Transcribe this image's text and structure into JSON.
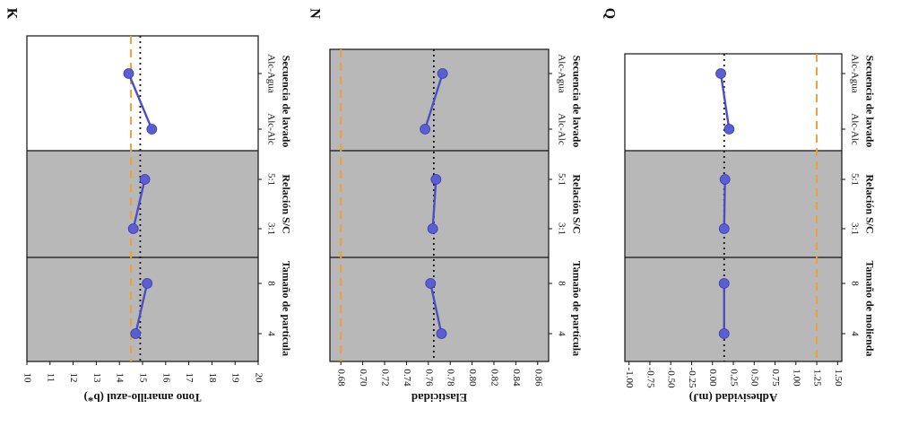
{
  "figure_title": "",
  "chart_data": [
    {
      "type": "line",
      "panel_label": "K",
      "ylabel": "Tono amarillo-azul (b*)",
      "ylim": [
        10,
        20
      ],
      "yticks": [
        20,
        19,
        18,
        17,
        16,
        15,
        14,
        13,
        12,
        11,
        10
      ],
      "reference_lines": [
        {
          "name": "mean",
          "value": 14.9,
          "style": "dotted",
          "color": "#111111"
        },
        {
          "name": "reference",
          "value": 14.5,
          "style": "dashed",
          "color": "#f0a030"
        }
      ],
      "groups": [
        {
          "name": "Tamaño de partícula",
          "shaded": true,
          "categories": [
            "4",
            "8"
          ],
          "values": [
            14.7,
            15.2
          ]
        },
        {
          "name": "Relación S/C",
          "shaded": true,
          "categories": [
            "3:1",
            "5:1"
          ],
          "values": [
            14.6,
            15.1
          ]
        },
        {
          "name": "Secuencia de lavado",
          "shaded": false,
          "categories": [
            "Alc-Alc",
            "Alc-Agua"
          ],
          "values": [
            15.4,
            14.4
          ]
        }
      ]
    },
    {
      "type": "line",
      "panel_label": "N",
      "ylabel": "Elasticidad",
      "ylim": [
        0.67,
        0.87
      ],
      "yticks": [
        0.86,
        0.84,
        0.82,
        0.8,
        0.78,
        0.76,
        0.74,
        0.72,
        0.7,
        0.68
      ],
      "reference_lines": [
        {
          "name": "mean",
          "value": 0.765,
          "style": "dotted",
          "color": "#111111"
        },
        {
          "name": "reference",
          "value": 0.68,
          "style": "dashed",
          "color": "#f0a030"
        }
      ],
      "groups": [
        {
          "name": "Tamaño de partícula",
          "shaded": true,
          "categories": [
            "4",
            "8"
          ],
          "values": [
            0.772,
            0.762
          ]
        },
        {
          "name": "Relación S/C",
          "shaded": true,
          "categories": [
            "3:1",
            "5:1"
          ],
          "values": [
            0.764,
            0.767
          ]
        },
        {
          "name": "Secuencia de lavado",
          "shaded": true,
          "categories": [
            "Alc-Alc",
            "Alc-Agua"
          ],
          "values": [
            0.757,
            0.773
          ]
        }
      ]
    },
    {
      "type": "line",
      "panel_label": "Q",
      "ylabel": "Adhesividad (mJ)",
      "ylim": [
        -1.05,
        1.55
      ],
      "yticks": [
        1.5,
        1.25,
        1.0,
        0.75,
        0.5,
        0.25,
        0.0,
        -0.25,
        -0.5,
        -0.75,
        -1.0
      ],
      "reference_lines": [
        {
          "name": "mean",
          "value": 0.14,
          "style": "dotted",
          "color": "#111111"
        },
        {
          "name": "reference",
          "value": 1.25,
          "style": "dashed",
          "color": "#f0a030"
        }
      ],
      "groups": [
        {
          "name": "Tamaño de molienda",
          "shaded": true,
          "categories": [
            "4",
            "8"
          ],
          "values": [
            0.14,
            0.14
          ]
        },
        {
          "name": "Relación S/C",
          "shaded": true,
          "categories": [
            "3:1",
            "5:1"
          ],
          "values": [
            0.14,
            0.15
          ]
        },
        {
          "name": "Secuencia de lavado",
          "shaded": false,
          "categories": [
            "Alc-Alc",
            "Alc-Agua"
          ],
          "values": [
            0.2,
            0.1
          ]
        }
      ]
    }
  ],
  "colors": {
    "series": "#4b4fc2",
    "marker": "#5a5ed0",
    "shade": "#b8b8b8",
    "reference": "#f0a030",
    "mean": "#111111"
  }
}
